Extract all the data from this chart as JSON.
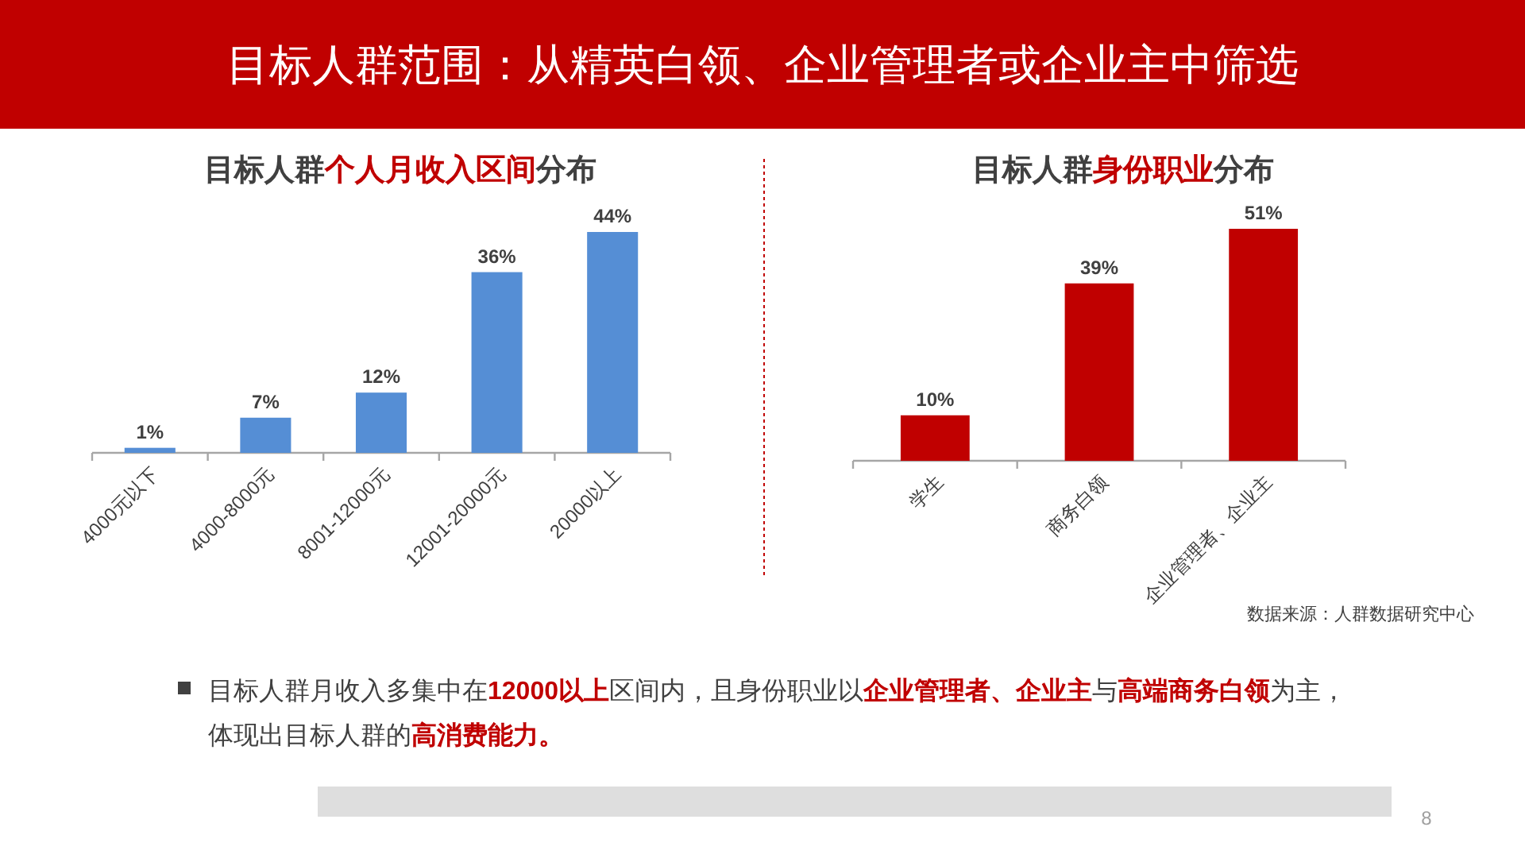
{
  "chart_data": [
    {
      "type": "other",
      "title": "目标人群范围：从精英白领、企业管理者或企业主中筛选",
      "annotations": [
        "目标人群月收入多集中在**12000以上**区间内，且身份职业以**企业管理者、企业主**与**高端商务白领**为主，体现出目标人群的**高消费能力。**",
        "8"
      ]
    },
    {
      "type": "bar",
      "title": "目标人群**个人月收入区间**分布",
      "categories": [
        "4000元以下",
        "4000-8000元",
        "8001-12000元",
        "12001-20000元",
        "20000以上"
      ],
      "values": [
        1,
        7,
        12,
        36,
        44
      ],
      "value_labels": [
        "1%",
        "7%",
        "12%",
        "36%",
        "44%"
      ],
      "color": "#558ed5"
    },
    {
      "type": "bar",
      "title": "目标人群**身份职业**分布",
      "categories": [
        "学生",
        "商务白领",
        "企业管理者、企业主"
      ],
      "values": [
        10,
        39,
        51
      ],
      "value_labels": [
        "10%",
        "39%",
        "51%"
      ],
      "color": "#c00000",
      "annotations": [
        "数据来源：人群数据研究中心"
      ]
    }
  ]
}
